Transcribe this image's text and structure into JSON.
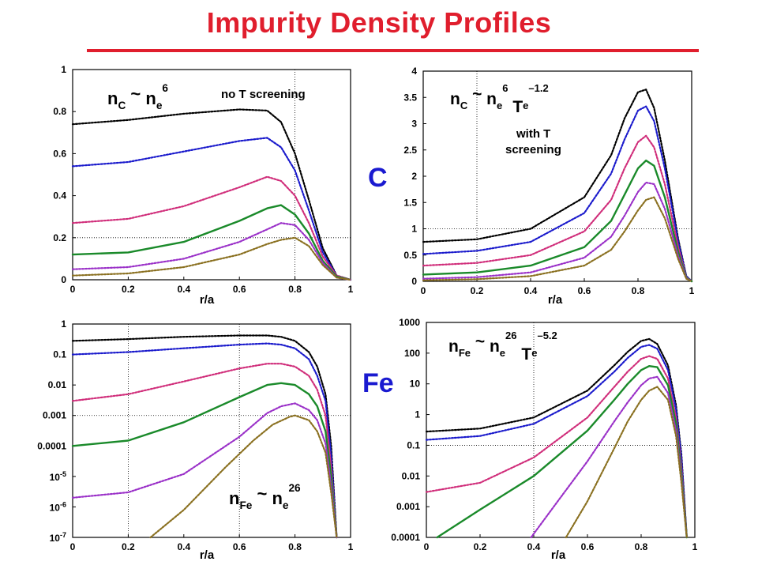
{
  "title": "Impurity Density Profiles",
  "element_labels": {
    "carbon": "C",
    "iron": "Fe"
  },
  "colors": {
    "title": "#e01e2d",
    "element_label": "#1a1ad0"
  },
  "chart_data": [
    {
      "id": "c-no-screening",
      "type": "line",
      "xlabel": "r/a",
      "xlim": [
        0,
        1
      ],
      "ylim": [
        0,
        1
      ],
      "yscale": "linear",
      "xticks": [
        "0",
        "0.2",
        "0.4",
        "0.6",
        "0.8",
        "1"
      ],
      "yticks": [
        "0",
        "0.2",
        "0.4",
        "0.6",
        "0.8",
        "1"
      ],
      "formula": {
        "lhs": "n",
        "lhs_sub": "C",
        "op": "~",
        "rhs": "n",
        "rhs_sub": "e",
        "rhs_sup": "6"
      },
      "annotation": [
        "no T screening"
      ],
      "refline": {
        "x": 0.8,
        "y": 0.2
      },
      "series": [
        {
          "color": "#000000",
          "style": "dotted",
          "x": [
            0,
            0.2,
            0.4,
            0.6,
            0.7,
            0.75,
            0.8,
            0.85,
            0.9,
            0.95,
            1
          ],
          "y": [
            0.74,
            0.76,
            0.79,
            0.81,
            0.805,
            0.75,
            0.6,
            0.38,
            0.15,
            0.02,
            0
          ]
        },
        {
          "color": "#1a1acc",
          "style": "dotted",
          "x": [
            0,
            0.2,
            0.4,
            0.6,
            0.7,
            0.75,
            0.8,
            0.85,
            0.9,
            0.95,
            1
          ],
          "y": [
            0.54,
            0.56,
            0.61,
            0.66,
            0.675,
            0.63,
            0.52,
            0.33,
            0.13,
            0.02,
            0
          ]
        },
        {
          "color": "#d02d7a",
          "style": "dotted",
          "x": [
            0,
            0.2,
            0.4,
            0.6,
            0.7,
            0.75,
            0.8,
            0.85,
            0.9,
            0.95,
            1
          ],
          "y": [
            0.27,
            0.29,
            0.35,
            0.44,
            0.49,
            0.47,
            0.4,
            0.27,
            0.11,
            0.02,
            0
          ]
        },
        {
          "color": "#1a8a2a",
          "style": "solid",
          "x": [
            0,
            0.2,
            0.4,
            0.6,
            0.7,
            0.75,
            0.8,
            0.85,
            0.9,
            0.95,
            1
          ],
          "y": [
            0.12,
            0.13,
            0.18,
            0.28,
            0.34,
            0.355,
            0.31,
            0.22,
            0.09,
            0.015,
            0
          ]
        },
        {
          "color": "#9a30c8",
          "style": "dotted",
          "x": [
            0,
            0.2,
            0.4,
            0.6,
            0.7,
            0.75,
            0.8,
            0.85,
            0.9,
            0.95,
            1
          ],
          "y": [
            0.05,
            0.06,
            0.1,
            0.18,
            0.24,
            0.27,
            0.26,
            0.19,
            0.08,
            0.01,
            0
          ]
        },
        {
          "color": "#8a7020",
          "style": "dotted",
          "x": [
            0,
            0.2,
            0.4,
            0.6,
            0.7,
            0.75,
            0.8,
            0.85,
            0.9,
            0.95,
            1
          ],
          "y": [
            0.02,
            0.03,
            0.06,
            0.12,
            0.17,
            0.19,
            0.2,
            0.16,
            0.07,
            0.01,
            0
          ]
        }
      ]
    },
    {
      "id": "c-with-screening",
      "type": "line",
      "xlabel": "r/a",
      "xlim": [
        0,
        1
      ],
      "ylim": [
        0,
        4
      ],
      "yscale": "linear",
      "xticks": [
        "0",
        "0.2",
        "0.4",
        "0.6",
        "0.8",
        "1"
      ],
      "yticks": [
        "0",
        "0.5",
        "1",
        "1.5",
        "2",
        "2.5",
        "3",
        "3.5",
        "4"
      ],
      "formula": {
        "lhs": "n",
        "lhs_sub": "C",
        "op": "~",
        "rhs": "n",
        "rhs_sub": "e",
        "rhs_sup": "6",
        "extra": "T",
        "extra_sub": "e",
        "extra_sup": "–1.2"
      },
      "annotation": [
        "with T",
        "screening"
      ],
      "refline": {
        "x": 0.2,
        "y": 1
      },
      "series": [
        {
          "color": "#000000",
          "style": "dotted",
          "x": [
            0,
            0.2,
            0.4,
            0.6,
            0.7,
            0.75,
            0.8,
            0.83,
            0.86,
            0.9,
            0.95,
            0.98,
            1
          ],
          "y": [
            0.75,
            0.8,
            1.0,
            1.6,
            2.4,
            3.1,
            3.6,
            3.65,
            3.3,
            2.3,
            0.8,
            0.1,
            0
          ]
        },
        {
          "color": "#1a1acc",
          "style": "dotted",
          "x": [
            0,
            0.2,
            0.4,
            0.6,
            0.7,
            0.75,
            0.8,
            0.83,
            0.86,
            0.9,
            0.95,
            0.98,
            1
          ],
          "y": [
            0.52,
            0.58,
            0.75,
            1.3,
            2.05,
            2.7,
            3.25,
            3.33,
            3.05,
            2.15,
            0.75,
            0.1,
            0
          ]
        },
        {
          "color": "#d02d7a",
          "style": "dotted",
          "x": [
            0,
            0.2,
            0.4,
            0.6,
            0.7,
            0.75,
            0.8,
            0.83,
            0.86,
            0.9,
            0.95,
            0.98,
            1
          ],
          "y": [
            0.3,
            0.35,
            0.5,
            0.95,
            1.55,
            2.15,
            2.65,
            2.77,
            2.55,
            1.85,
            0.65,
            0.08,
            0
          ]
        },
        {
          "color": "#1a8a2a",
          "style": "solid",
          "x": [
            0,
            0.2,
            0.4,
            0.6,
            0.7,
            0.75,
            0.8,
            0.83,
            0.86,
            0.9,
            0.95,
            0.98,
            1
          ],
          "y": [
            0.13,
            0.17,
            0.3,
            0.65,
            1.15,
            1.65,
            2.15,
            2.3,
            2.2,
            1.6,
            0.55,
            0.07,
            0
          ]
        },
        {
          "color": "#9a30c8",
          "style": "dotted",
          "x": [
            0,
            0.2,
            0.4,
            0.6,
            0.7,
            0.75,
            0.8,
            0.83,
            0.86,
            0.9,
            0.95,
            0.98,
            1
          ],
          "y": [
            0.05,
            0.08,
            0.17,
            0.45,
            0.85,
            1.25,
            1.7,
            1.88,
            1.85,
            1.38,
            0.48,
            0.06,
            0
          ]
        },
        {
          "color": "#8a7020",
          "style": "dotted",
          "x": [
            0,
            0.2,
            0.4,
            0.6,
            0.7,
            0.75,
            0.8,
            0.83,
            0.86,
            0.9,
            0.95,
            0.98,
            1
          ],
          "y": [
            0.02,
            0.04,
            0.1,
            0.3,
            0.6,
            0.95,
            1.35,
            1.55,
            1.6,
            1.2,
            0.42,
            0.05,
            0
          ]
        }
      ]
    },
    {
      "id": "fe-no-screening",
      "type": "line",
      "xlabel": "r/a",
      "xlim": [
        0,
        1
      ],
      "ylim": [
        1e-07,
        1
      ],
      "yscale": "log",
      "xticks": [
        "0",
        "0.2",
        "0.4",
        "0.6",
        "0.8",
        "1"
      ],
      "yticks": [
        {
          "value": 1,
          "text": "1"
        },
        {
          "value": 0.1,
          "text": "0.1"
        },
        {
          "value": 0.01,
          "text": "0.01"
        },
        {
          "value": 0.001,
          "text": "0.001"
        },
        {
          "value": 0.0001,
          "text": "0.0001"
        },
        {
          "value": 1e-05,
          "base": "10",
          "exp": "-5"
        },
        {
          "value": 1e-06,
          "base": "10",
          "exp": "-6"
        },
        {
          "value": 1e-07,
          "base": "10",
          "exp": "-7"
        }
      ],
      "formula": {
        "lhs": "n",
        "lhs_sub": "Fe",
        "op": "~",
        "rhs": "n",
        "rhs_sub": "e",
        "rhs_sup": "26"
      },
      "annotation": [],
      "reflines": {
        "x": [
          0.2,
          0.6
        ],
        "y": [
          0.001
        ]
      },
      "series": [
        {
          "color": "#000000",
          "style": "dotted",
          "x": [
            0,
            0.2,
            0.4,
            0.6,
            0.7,
            0.75,
            0.8,
            0.85,
            0.88,
            0.91,
            0.93,
            0.95
          ],
          "y": [
            0.28,
            0.32,
            0.38,
            0.42,
            0.42,
            0.38,
            0.28,
            0.12,
            0.04,
            0.005,
            0.0001,
            1e-07
          ]
        },
        {
          "color": "#1a1acc",
          "style": "dotted",
          "x": [
            0,
            0.2,
            0.4,
            0.6,
            0.7,
            0.75,
            0.8,
            0.85,
            0.88,
            0.91,
            0.93,
            0.95
          ],
          "y": [
            0.1,
            0.12,
            0.16,
            0.21,
            0.23,
            0.21,
            0.16,
            0.07,
            0.02,
            0.003,
            5e-05,
            1e-07
          ]
        },
        {
          "color": "#d02d7a",
          "style": "dotted",
          "x": [
            0,
            0.2,
            0.4,
            0.6,
            0.7,
            0.75,
            0.8,
            0.85,
            0.88,
            0.91,
            0.93,
            0.95
          ],
          "y": [
            0.003,
            0.005,
            0.013,
            0.035,
            0.05,
            0.05,
            0.04,
            0.02,
            0.007,
            0.001,
            2e-05,
            1e-07
          ]
        },
        {
          "color": "#1a8a2a",
          "style": "solid",
          "x": [
            0,
            0.2,
            0.4,
            0.6,
            0.7,
            0.75,
            0.8,
            0.85,
            0.88,
            0.91,
            0.93,
            0.95
          ],
          "y": [
            0.0001,
            0.00015,
            0.0006,
            0.004,
            0.01,
            0.0115,
            0.01,
            0.005,
            0.002,
            0.0003,
            1e-05,
            1e-07
          ]
        },
        {
          "color": "#9a30c8",
          "style": "dotted",
          "x": [
            0,
            0.2,
            0.4,
            0.6,
            0.7,
            0.75,
            0.8,
            0.85,
            0.88,
            0.91,
            0.93,
            0.95
          ],
          "y": [
            2e-06,
            3e-06,
            1.2e-05,
            0.0002,
            0.0012,
            0.002,
            0.0025,
            0.0015,
            0.0007,
            0.00012,
            5e-06,
            1e-07
          ]
        },
        {
          "color": "#8a7020",
          "style": "dotted",
          "x": [
            0.28,
            0.4,
            0.55,
            0.65,
            0.72,
            0.78,
            0.8,
            0.85,
            0.88,
            0.91,
            0.93,
            0.95
          ],
          "y": [
            1e-07,
            8e-07,
            2e-05,
            0.00015,
            0.0005,
            0.0009,
            0.001,
            0.0007,
            0.0003,
            6e-05,
            3e-06,
            1e-07
          ]
        }
      ]
    },
    {
      "id": "fe-with-screening",
      "type": "line",
      "xlabel": "r/a",
      "xlim": [
        0,
        1
      ],
      "ylim": [
        0.0001,
        1000
      ],
      "yscale": "log",
      "xticks": [
        "0",
        "0.2",
        "0.4",
        "0.6",
        "0.8",
        "1"
      ],
      "yticks": [
        {
          "value": 1000,
          "text": "1000"
        },
        {
          "value": 100,
          "text": "100"
        },
        {
          "value": 10,
          "text": "10"
        },
        {
          "value": 1,
          "text": "1"
        },
        {
          "value": 0.1,
          "text": "0.1"
        },
        {
          "value": 0.01,
          "text": "0.01"
        },
        {
          "value": 0.001,
          "text": "0.001"
        },
        {
          "value": 0.0001,
          "text": "0.0001"
        }
      ],
      "formula": {
        "lhs": "n",
        "lhs_sub": "Fe",
        "op": "~",
        "rhs": "n",
        "rhs_sub": "e",
        "rhs_sup": "26",
        "extra": "T",
        "extra_sub": "e",
        "extra_sup": "–5.2"
      },
      "annotation": [],
      "reflines": {
        "x": [
          0.4
        ],
        "y": [
          0.1
        ]
      },
      "series": [
        {
          "color": "#000000",
          "style": "dotted",
          "x": [
            0,
            0.2,
            0.4,
            0.6,
            0.7,
            0.75,
            0.8,
            0.83,
            0.86,
            0.9,
            0.93,
            0.95,
            0.97
          ],
          "y": [
            0.28,
            0.35,
            0.8,
            6,
            40,
            110,
            250,
            290,
            200,
            40,
            2,
            0.05,
            0.0001
          ]
        },
        {
          "color": "#1a1acc",
          "style": "dotted",
          "x": [
            0,
            0.2,
            0.4,
            0.6,
            0.7,
            0.75,
            0.8,
            0.83,
            0.86,
            0.9,
            0.93,
            0.95,
            0.97
          ],
          "y": [
            0.15,
            0.2,
            0.5,
            4,
            25,
            70,
            160,
            185,
            140,
            28,
            1.5,
            0.04,
            0.0001
          ]
        },
        {
          "color": "#d02d7a",
          "style": "dotted",
          "x": [
            0,
            0.2,
            0.4,
            0.6,
            0.7,
            0.75,
            0.8,
            0.83,
            0.86,
            0.9,
            0.93,
            0.95,
            0.97
          ],
          "y": [
            0.003,
            0.006,
            0.04,
            0.8,
            8,
            25,
            65,
            80,
            65,
            15,
            0.8,
            0.02,
            0.0001
          ]
        },
        {
          "color": "#1a8a2a",
          "style": "solid",
          "x": [
            0.04,
            0.2,
            0.4,
            0.6,
            0.7,
            0.75,
            0.8,
            0.83,
            0.86,
            0.9,
            0.93,
            0.95,
            0.97
          ],
          "y": [
            0.0001,
            0.0008,
            0.01,
            0.3,
            3,
            10,
            28,
            38,
            35,
            9,
            0.5,
            0.012,
            0.0001
          ]
        },
        {
          "color": "#9a30c8",
          "style": "dotted",
          "x": [
            0.39,
            0.5,
            0.6,
            0.7,
            0.75,
            0.8,
            0.83,
            0.86,
            0.9,
            0.93,
            0.95,
            0.97
          ],
          "y": [
            0.0001,
            0.002,
            0.03,
            0.6,
            2.5,
            9,
            15,
            17,
            5,
            0.3,
            0.008,
            0.0001
          ]
        },
        {
          "color": "#8a7020",
          "style": "dotted",
          "x": [
            0.52,
            0.6,
            0.7,
            0.75,
            0.8,
            0.83,
            0.86,
            0.9,
            0.93,
            0.95,
            0.97
          ],
          "y": [
            0.0001,
            0.0015,
            0.08,
            0.6,
            3,
            6,
            8,
            3,
            0.2,
            0.006,
            0.0001
          ]
        }
      ]
    }
  ]
}
